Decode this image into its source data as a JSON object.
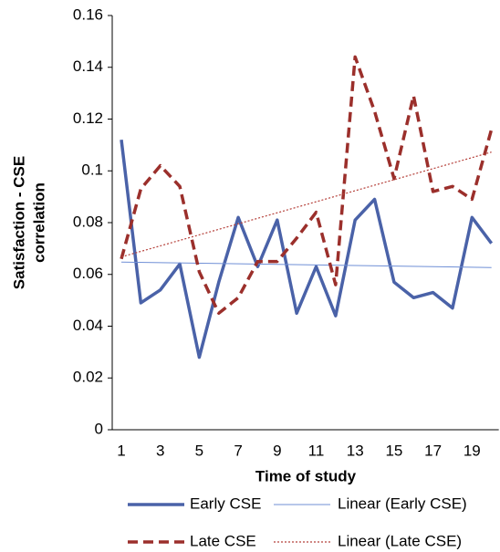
{
  "chart_data": {
    "type": "line",
    "xlabel": "Time of study",
    "ylabel": [
      "Satisfaction - CSE",
      "correlation"
    ],
    "categories": [
      1,
      null,
      3,
      null,
      5,
      null,
      7,
      null,
      9,
      null,
      11,
      null,
      13,
      null,
      15,
      null,
      17,
      null,
      19,
      null
    ],
    "series": [
      {
        "name": "Early CSE",
        "color": "#4a62a8",
        "style": "solid",
        "values": [
          0.112,
          0.049,
          0.054,
          0.064,
          0.028,
          0.057,
          0.082,
          0.063,
          0.081,
          0.045,
          0.063,
          0.044,
          0.081,
          0.089,
          0.057,
          0.051,
          0.053,
          0.047,
          0.082,
          0.072
        ]
      },
      {
        "name": "Linear (Early CSE)",
        "color": "#6f8fd6",
        "style": "trend",
        "trendline_of": 0
      },
      {
        "name": "Late CSE",
        "color": "#9b2f2b",
        "style": "dashed",
        "values": [
          0.066,
          0.093,
          0.102,
          0.094,
          0.061,
          0.045,
          0.051,
          0.065,
          0.065,
          0.074,
          0.084,
          0.056,
          0.144,
          0.123,
          0.097,
          0.129,
          0.092,
          0.094,
          0.089,
          0.116
        ]
      },
      {
        "name": "Linear (Late CSE)",
        "color": "#b5403a",
        "style": "dotted",
        "trendline_of": 2
      }
    ],
    "ylim": [
      0,
      0.16
    ],
    "yticks": [
      0,
      0.02,
      0.04,
      0.06,
      0.08,
      0.1,
      0.12,
      0.14,
      0.16
    ],
    "grid": false
  }
}
